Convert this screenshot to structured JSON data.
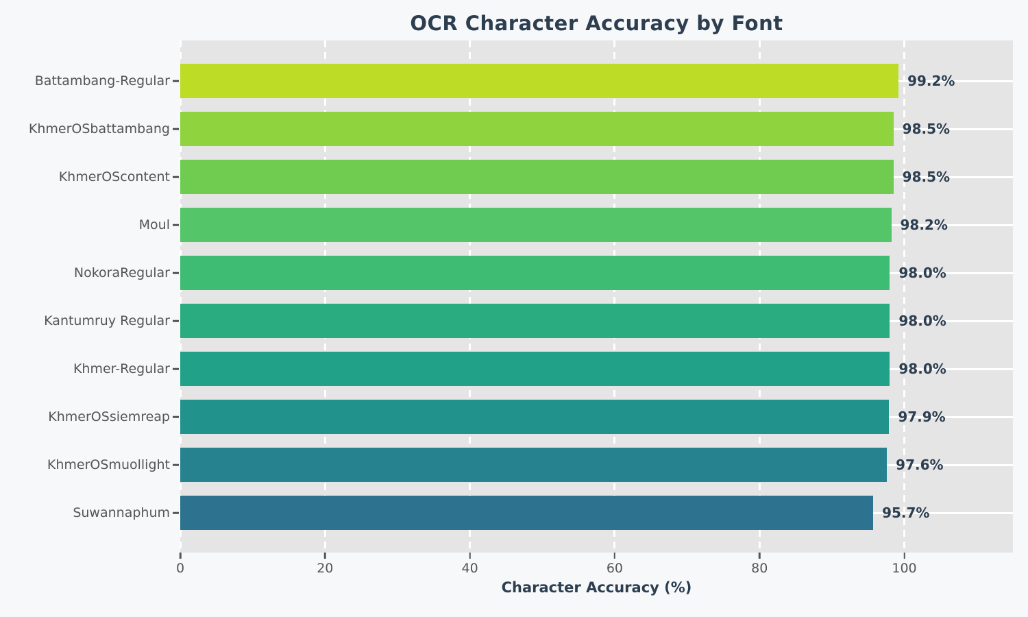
{
  "chart_data": {
    "type": "bar",
    "orientation": "horizontal",
    "title": "OCR Character Accuracy by Font",
    "xlabel": "Character Accuracy (%)",
    "ylabel": "",
    "categories": [
      "Battambang-Regular",
      "KhmerOSbattambang",
      "KhmerOScontent",
      "Moul",
      "NokoraRegular",
      "Kantumruy Regular",
      "Khmer-Regular",
      "KhmerOSsiemreap",
      "KhmerOSmuollight",
      "Suwannaphum"
    ],
    "values": [
      99.2,
      98.5,
      98.5,
      98.2,
      98.0,
      98.0,
      98.0,
      97.9,
      97.6,
      95.7
    ],
    "value_labels": [
      "99.2%",
      "98.5%",
      "98.5%",
      "98.2%",
      "98.0%",
      "98.0%",
      "98.0%",
      "97.9%",
      "97.6%",
      "95.7%"
    ],
    "bar_colors": [
      "#bddc26",
      "#8fd33f",
      "#6fcc51",
      "#54c568",
      "#3fbc73",
      "#2bac80",
      "#20a188",
      "#22928c",
      "#26828e",
      "#2d7390"
    ],
    "xticks": [
      0,
      20,
      40,
      60,
      80,
      100
    ],
    "xtick_labels": [
      "0",
      "20",
      "40",
      "60",
      "80",
      "100"
    ],
    "xlim": [
      0,
      115
    ],
    "legend": "none",
    "grid": {
      "vertical": "white dashed at each x tick",
      "horizontal": "white solid at each bar center"
    }
  },
  "colors": {
    "figure_bg": "#f7f8fa",
    "plot_bg": "#e5e5e5",
    "gridline": "#ffffff",
    "title_text": "#2c3e50",
    "value_text": "#2c3e50",
    "axis_label_text": "#2c3e50",
    "tick_text": "#555555",
    "tick_mark": "#555555"
  }
}
